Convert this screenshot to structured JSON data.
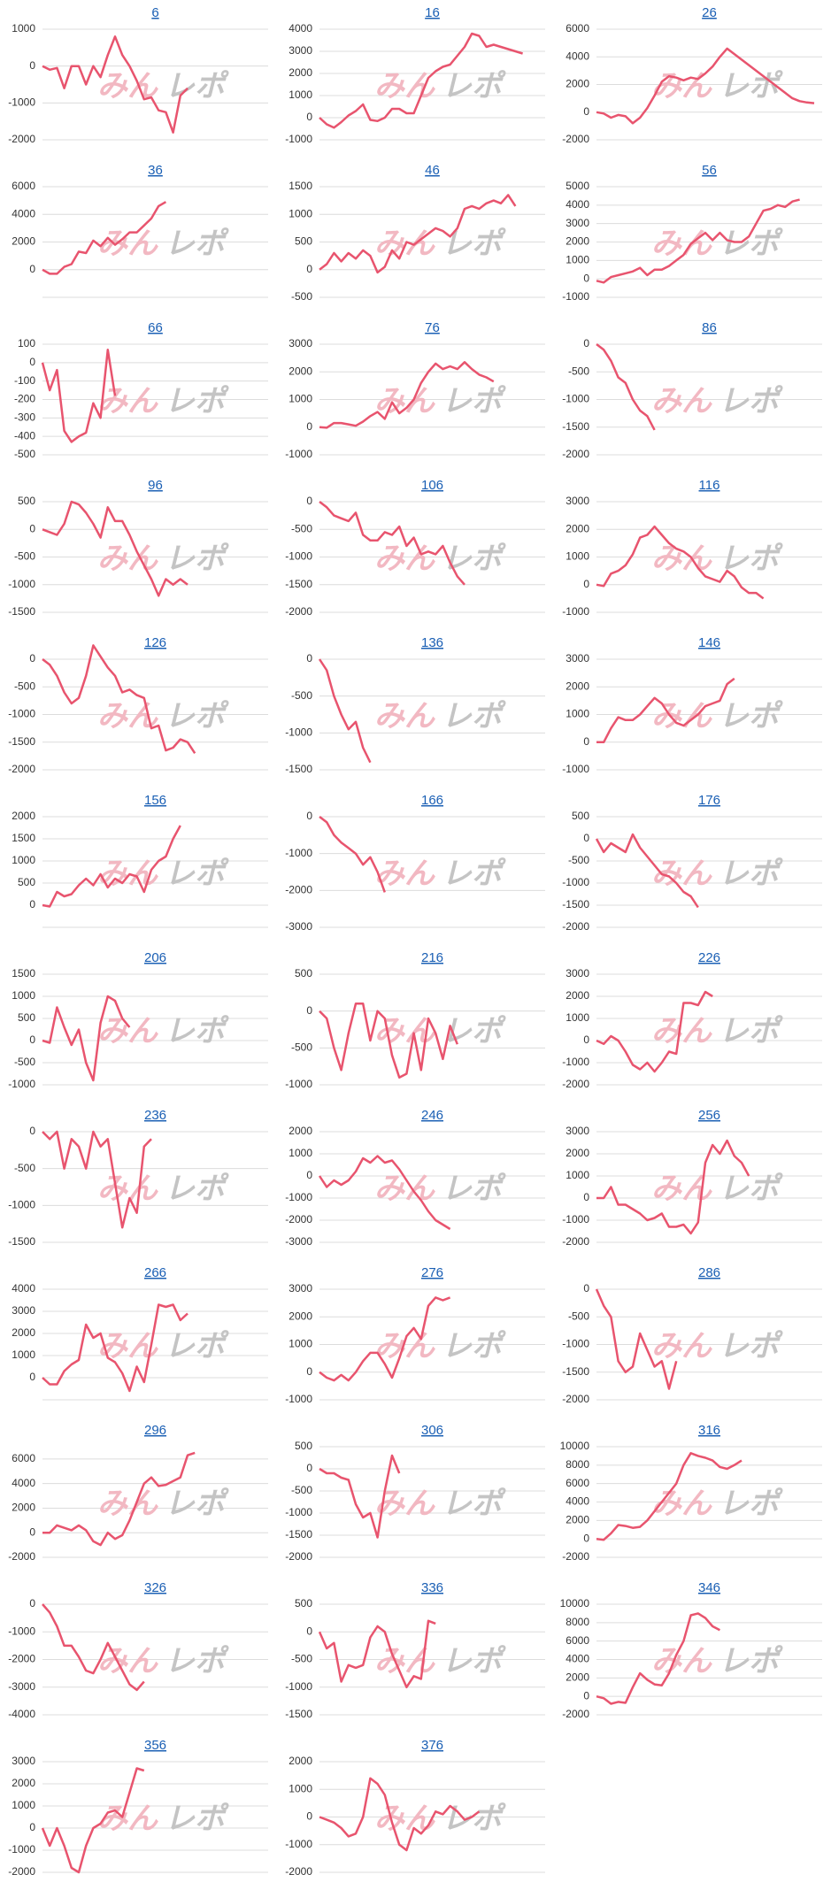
{
  "watermark": [
    "みん",
    "レポ"
  ],
  "chart_data": [
    {
      "type": "line",
      "title": "6",
      "color": "#e8546e",
      "ylim": [
        -2000,
        1000
      ],
      "yticks": [
        -2000,
        -1000,
        0,
        1000
      ],
      "values": [
        0,
        -100,
        -50,
        -600,
        0,
        0,
        -500,
        0,
        -300,
        300,
        800,
        300,
        0,
        -400,
        -900,
        -850,
        -1200,
        -1250,
        -1800,
        -800,
        -600
      ]
    },
    {
      "type": "line",
      "title": "16",
      "color": "#e8546e",
      "ylim": [
        -1000,
        4000
      ],
      "yticks": [
        -1000,
        0,
        1000,
        2000,
        3000,
        4000
      ],
      "values": [
        0,
        -300,
        -450,
        -200,
        100,
        300,
        600,
        -100,
        -150,
        0,
        400,
        400,
        200,
        200,
        1000,
        1800,
        2100,
        2300,
        2400,
        2800,
        3200,
        3800,
        3700,
        3200,
        3300,
        3200,
        3100,
        3000,
        2900
      ]
    },
    {
      "type": "line",
      "title": "26",
      "color": "#e8546e",
      "ylim": [
        -2000,
        6000
      ],
      "yticks": [
        -2000,
        0,
        2000,
        4000,
        6000
      ],
      "values": [
        0,
        -100,
        -400,
        -200,
        -300,
        -800,
        -400,
        300,
        1200,
        2200,
        2600,
        2500,
        2300,
        2500,
        2400,
        2800,
        3300,
        4000,
        4600,
        4200,
        3800,
        3400,
        3000,
        2600,
        2200,
        1800,
        1400,
        1000,
        800,
        700,
        650
      ]
    },
    {
      "type": "line",
      "title": "36",
      "color": "#e8546e",
      "ylim": [
        -2000,
        6000
      ],
      "yticks": [
        0,
        2000,
        4000,
        6000
      ],
      "values": [
        0,
        -300,
        -300,
        200,
        400,
        1300,
        1200,
        2100,
        1700,
        2300,
        1800,
        2200,
        2700,
        2700,
        3200,
        3700,
        4600,
        4900
      ]
    },
    {
      "type": "line",
      "title": "46",
      "color": "#e8546e",
      "ylim": [
        -500,
        1500
      ],
      "yticks": [
        -500,
        0,
        500,
        1000,
        1500
      ],
      "values": [
        0,
        100,
        300,
        150,
        300,
        200,
        350,
        250,
        -50,
        50,
        350,
        200,
        500,
        450,
        550,
        650,
        750,
        700,
        600,
        750,
        1100,
        1150,
        1100,
        1200,
        1250,
        1200,
        1350,
        1150
      ]
    },
    {
      "type": "line",
      "title": "56",
      "color": "#e8546e",
      "ylim": [
        -1000,
        5000
      ],
      "yticks": [
        -1000,
        0,
        1000,
        2000,
        3000,
        4000,
        5000
      ],
      "values": [
        -100,
        -200,
        100,
        200,
        300,
        400,
        600,
        200,
        500,
        500,
        700,
        1000,
        1300,
        1900,
        2200,
        2500,
        2100,
        2500,
        2100,
        2000,
        2000,
        2300,
        3000,
        3700,
        3800,
        4000,
        3900,
        4200,
        4300
      ]
    },
    {
      "type": "line",
      "title": "66",
      "color": "#e8546e",
      "ylim": [
        -500,
        100
      ],
      "yticks": [
        -500,
        -400,
        -300,
        -200,
        -100,
        0,
        100
      ],
      "values": [
        0,
        -150,
        -40,
        -370,
        -430,
        -400,
        -380,
        -220,
        -300,
        70,
        -180
      ]
    },
    {
      "type": "line",
      "title": "76",
      "color": "#e8546e",
      "ylim": [
        -1000,
        3000
      ],
      "yticks": [
        -1000,
        0,
        1000,
        2000,
        3000
      ],
      "values": [
        0,
        -20,
        150,
        150,
        100,
        50,
        200,
        400,
        550,
        300,
        900,
        500,
        700,
        1000,
        1600,
        2000,
        2300,
        2100,
        2200,
        2100,
        2350,
        2100,
        1900,
        1800,
        1650
      ]
    },
    {
      "type": "line",
      "title": "86",
      "color": "#e8546e",
      "ylim": [
        -2000,
        0
      ],
      "yticks": [
        -2000,
        -1500,
        -1000,
        -500,
        0
      ],
      "values": [
        0,
        -100,
        -300,
        -600,
        -700,
        -1000,
        -1200,
        -1300,
        -1550
      ]
    },
    {
      "type": "line",
      "title": "96",
      "color": "#e8546e",
      "ylim": [
        -1500,
        500
      ],
      "yticks": [
        -1500,
        -1000,
        -500,
        0,
        500
      ],
      "values": [
        0,
        -50,
        -100,
        100,
        500,
        450,
        300,
        100,
        -150,
        400,
        150,
        150,
        -100,
        -400,
        -650,
        -900,
        -1200,
        -900,
        -1000,
        -900,
        -1000
      ]
    },
    {
      "type": "line",
      "title": "106",
      "color": "#e8546e",
      "ylim": [
        -2000,
        0
      ],
      "yticks": [
        -2000,
        -1500,
        -1000,
        -500,
        0
      ],
      "values": [
        0,
        -100,
        -250,
        -300,
        -350,
        -200,
        -600,
        -700,
        -700,
        -550,
        -600,
        -450,
        -800,
        -650,
        -950,
        -900,
        -950,
        -800,
        -1100,
        -1350,
        -1500
      ]
    },
    {
      "type": "line",
      "title": "116",
      "color": "#e8546e",
      "ylim": [
        -1000,
        3000
      ],
      "yticks": [
        -1000,
        0,
        1000,
        2000,
        3000
      ],
      "values": [
        0,
        -50,
        400,
        500,
        700,
        1100,
        1700,
        1800,
        2100,
        1800,
        1500,
        1300,
        1200,
        1000,
        600,
        300,
        200,
        100,
        500,
        300,
        -100,
        -300,
        -300,
        -500
      ]
    },
    {
      "type": "line",
      "title": "126",
      "color": "#e8546e",
      "ylim": [
        -2000,
        0
      ],
      "yticks": [
        -2000,
        -1500,
        -1000,
        -500,
        0
      ],
      "values": [
        0,
        -100,
        -300,
        -600,
        -800,
        -700,
        -300,
        250,
        50,
        -150,
        -300,
        -600,
        -550,
        -650,
        -700,
        -1250,
        -1200,
        -1650,
        -1600,
        -1450,
        -1500,
        -1700
      ]
    },
    {
      "type": "line",
      "title": "136",
      "color": "#e8546e",
      "ylim": [
        -1500,
        0
      ],
      "yticks": [
        -1500,
        -1000,
        -500,
        0
      ],
      "values": [
        0,
        -150,
        -500,
        -750,
        -950,
        -850,
        -1200,
        -1400
      ]
    },
    {
      "type": "line",
      "title": "146",
      "color": "#e8546e",
      "ylim": [
        -1000,
        3000
      ],
      "yticks": [
        -1000,
        0,
        1000,
        2000,
        3000
      ],
      "values": [
        0,
        0,
        500,
        900,
        800,
        800,
        1000,
        1300,
        1600,
        1400,
        1000,
        700,
        600,
        800,
        1000,
        1300,
        1400,
        1500,
        2100,
        2300
      ]
    },
    {
      "type": "line",
      "title": "156",
      "color": "#e8546e",
      "ylim": [
        -500,
        2000
      ],
      "yticks": [
        0,
        500,
        1000,
        1500,
        2000
      ],
      "values": [
        0,
        -30,
        300,
        200,
        250,
        450,
        600,
        450,
        700,
        400,
        600,
        500,
        700,
        650,
        300,
        800,
        1000,
        1100,
        1500,
        1800
      ]
    },
    {
      "type": "line",
      "title": "166",
      "color": "#e8546e",
      "ylim": [
        -3000,
        0
      ],
      "yticks": [
        -3000,
        -2000,
        -1000,
        0
      ],
      "values": [
        0,
        -150,
        -500,
        -700,
        -850,
        -1000,
        -1300,
        -1100,
        -1500,
        -2050
      ]
    },
    {
      "type": "line",
      "title": "176",
      "color": "#e8546e",
      "ylim": [
        -2000,
        500
      ],
      "yticks": [
        -2000,
        -1500,
        -1000,
        -500,
        0,
        500
      ],
      "values": [
        0,
        -300,
        -100,
        -200,
        -300,
        100,
        -200,
        -400,
        -600,
        -800,
        -850,
        -1000,
        -1200,
        -1300,
        -1550
      ]
    },
    {
      "type": "line",
      "title": "206",
      "color": "#e8546e",
      "ylim": [
        -1000,
        1500
      ],
      "yticks": [
        -1000,
        -500,
        0,
        500,
        1000,
        1500
      ],
      "values": [
        0,
        -50,
        750,
        300,
        -100,
        250,
        -500,
        -900,
        400,
        1000,
        900,
        500,
        300
      ]
    },
    {
      "type": "line",
      "title": "216",
      "color": "#e8546e",
      "ylim": [
        -1000,
        500
      ],
      "yticks": [
        -1000,
        -500,
        0,
        500
      ],
      "values": [
        0,
        -100,
        -500,
        -800,
        -300,
        100,
        100,
        -400,
        0,
        -100,
        -600,
        -900,
        -850,
        -300,
        -800,
        -100,
        -300,
        -650,
        -200,
        -450
      ]
    },
    {
      "type": "line",
      "title": "226",
      "color": "#e8546e",
      "ylim": [
        -2000,
        3000
      ],
      "yticks": [
        -2000,
        -1000,
        0,
        1000,
        2000,
        3000
      ],
      "values": [
        0,
        -150,
        200,
        0,
        -500,
        -1100,
        -1300,
        -1000,
        -1400,
        -1000,
        -500,
        -600,
        1700,
        1700,
        1600,
        2200,
        2000
      ]
    },
    {
      "type": "line",
      "title": "236",
      "color": "#e8546e",
      "ylim": [
        -1500,
        0
      ],
      "yticks": [
        -1500,
        -1000,
        -500,
        0
      ],
      "values": [
        0,
        -100,
        0,
        -500,
        -100,
        -200,
        -500,
        0,
        -200,
        -100,
        -700,
        -1300,
        -900,
        -1100,
        -200,
        -100
      ]
    },
    {
      "type": "line",
      "title": "246",
      "color": "#e8546e",
      "ylim": [
        -3000,
        2000
      ],
      "yticks": [
        -3000,
        -2000,
        -1000,
        0,
        1000,
        2000
      ],
      "values": [
        0,
        -500,
        -200,
        -400,
        -200,
        200,
        800,
        600,
        900,
        600,
        700,
        300,
        -200,
        -700,
        -1100,
        -1600,
        -2000,
        -2200,
        -2400
      ]
    },
    {
      "type": "line",
      "title": "256",
      "color": "#e8546e",
      "ylim": [
        -2000,
        3000
      ],
      "yticks": [
        -2000,
        -1000,
        0,
        1000,
        2000,
        3000
      ],
      "values": [
        0,
        0,
        500,
        -300,
        -300,
        -500,
        -700,
        -1000,
        -900,
        -700,
        -1300,
        -1300,
        -1200,
        -1600,
        -1100,
        1600,
        2400,
        2000,
        2600,
        1900,
        1600,
        1000
      ]
    },
    {
      "type": "line",
      "title": "266",
      "color": "#e8546e",
      "ylim": [
        -1000,
        4000
      ],
      "yticks": [
        0,
        1000,
        2000,
        3000,
        4000
      ],
      "values": [
        0,
        -300,
        -300,
        300,
        600,
        800,
        2400,
        1800,
        2000,
        900,
        700,
        200,
        -600,
        500,
        -200,
        1500,
        3300,
        3200,
        3300,
        2600,
        2900
      ]
    },
    {
      "type": "line",
      "title": "276",
      "color": "#e8546e",
      "ylim": [
        -1000,
        3000
      ],
      "yticks": [
        -1000,
        0,
        1000,
        2000,
        3000
      ],
      "values": [
        0,
        -200,
        -300,
        -100,
        -300,
        0,
        400,
        700,
        700,
        300,
        -200,
        500,
        1300,
        1600,
        1200,
        2400,
        2700,
        2600,
        2700
      ]
    },
    {
      "type": "line",
      "title": "286",
      "color": "#e8546e",
      "ylim": [
        -2000,
        0
      ],
      "yticks": [
        -2000,
        -1500,
        -1000,
        -500,
        0
      ],
      "values": [
        0,
        -300,
        -500,
        -1300,
        -1500,
        -1400,
        -800,
        -1100,
        -1400,
        -1300,
        -1800,
        -1300
      ]
    },
    {
      "type": "line",
      "title": "296",
      "color": "#e8546e",
      "ylim": [
        -2000,
        7000
      ],
      "yticks": [
        -2000,
        0,
        2000,
        4000,
        6000
      ],
      "values": [
        0,
        0,
        600,
        400,
        200,
        600,
        200,
        -700,
        -1000,
        0,
        -500,
        -200,
        1000,
        2500,
        4000,
        4500,
        3800,
        3900,
        4200,
        4500,
        6300,
        6500
      ]
    },
    {
      "type": "line",
      "title": "306",
      "color": "#e8546e",
      "ylim": [
        -2000,
        500
      ],
      "yticks": [
        -2000,
        -1500,
        -1000,
        -500,
        0,
        500
      ],
      "values": [
        0,
        -100,
        -100,
        -200,
        -250,
        -800,
        -1100,
        -1000,
        -1550,
        -500,
        300,
        -100
      ]
    },
    {
      "type": "line",
      "title": "316",
      "color": "#e8546e",
      "ylim": [
        -2000,
        10000
      ],
      "yticks": [
        -2000,
        0,
        2000,
        4000,
        6000,
        8000,
        10000
      ],
      "values": [
        0,
        -100,
        600,
        1500,
        1400,
        1200,
        1300,
        2000,
        3000,
        4000,
        5000,
        6000,
        8000,
        9300,
        9000,
        8800,
        8500,
        7800,
        7600,
        8000,
        8500
      ]
    },
    {
      "type": "line",
      "title": "326",
      "color": "#e8546e",
      "ylim": [
        -4000,
        0
      ],
      "yticks": [
        -4000,
        -3000,
        -2000,
        -1000,
        0
      ],
      "values": [
        0,
        -300,
        -800,
        -1500,
        -1500,
        -1900,
        -2400,
        -2500,
        -2000,
        -1400,
        -1900,
        -2400,
        -2900,
        -3100,
        -2800
      ]
    },
    {
      "type": "line",
      "title": "336",
      "color": "#e8546e",
      "ylim": [
        -1500,
        500
      ],
      "yticks": [
        -1500,
        -1000,
        -500,
        0,
        500
      ],
      "values": [
        0,
        -300,
        -200,
        -900,
        -600,
        -650,
        -600,
        -100,
        100,
        0,
        -400,
        -700,
        -1000,
        -800,
        -850,
        200,
        150
      ]
    },
    {
      "type": "line",
      "title": "346",
      "color": "#e8546e",
      "ylim": [
        -2000,
        10000
      ],
      "yticks": [
        -2000,
        0,
        2000,
        4000,
        6000,
        8000,
        10000
      ],
      "values": [
        0,
        -200,
        -800,
        -600,
        -700,
        1000,
        2500,
        1800,
        1300,
        1200,
        2500,
        4500,
        6000,
        8800,
        9000,
        8500,
        7600,
        7200
      ]
    },
    {
      "type": "line",
      "title": "356",
      "color": "#e8546e",
      "ylim": [
        -2000,
        3000
      ],
      "yticks": [
        -2000,
        -1000,
        0,
        1000,
        2000,
        3000
      ],
      "values": [
        0,
        -800,
        0,
        -800,
        -1800,
        -2000,
        -800,
        0,
        200,
        700,
        800,
        500,
        1600,
        2700,
        2600
      ]
    },
    {
      "type": "line",
      "title": "376",
      "color": "#e8546e",
      "ylim": [
        -2000,
        2000
      ],
      "yticks": [
        -2000,
        -1000,
        0,
        1000,
        2000
      ],
      "values": [
        0,
        -100,
        -200,
        -400,
        -700,
        -600,
        0,
        1400,
        1200,
        800,
        -200,
        -1000,
        -1200,
        -400,
        -600,
        -300,
        200,
        100,
        400,
        200,
        -100,
        0,
        200
      ]
    }
  ]
}
